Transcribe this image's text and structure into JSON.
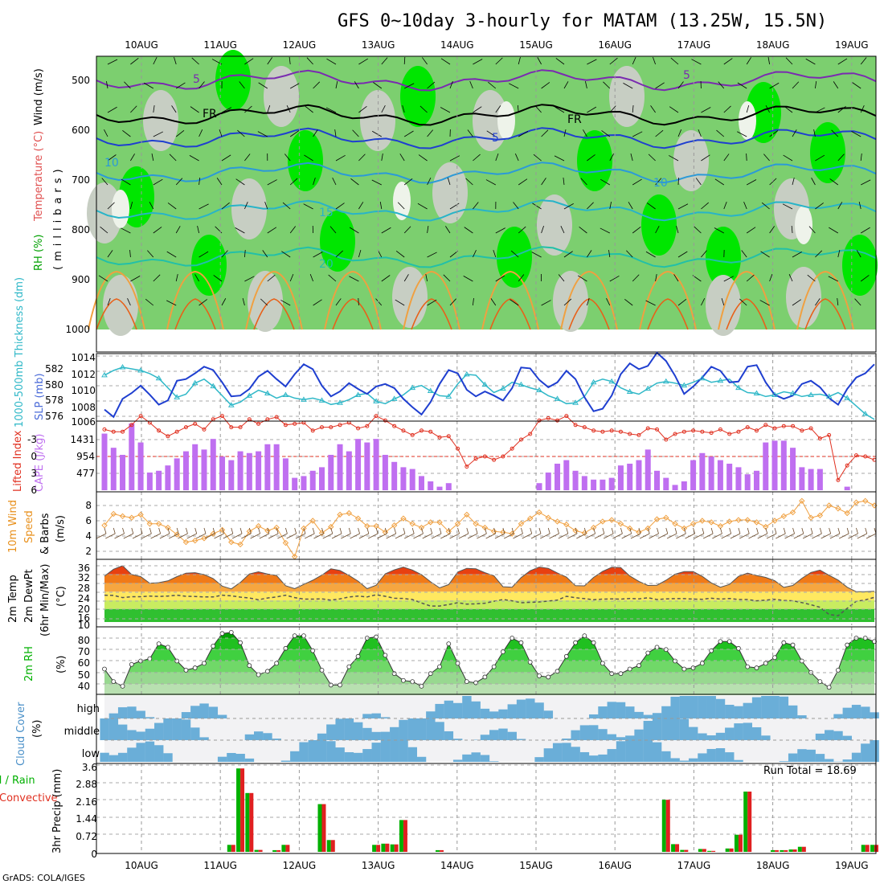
{
  "title": "GFS 0~10day 3-hourly for MATAM (13.25W, 15.5N)",
  "credit": "GrADS: COLA/IGES",
  "run_total_label": "Run Total = 18.69",
  "colors": {
    "green": "#00e600",
    "lgreen": "#7ccf6f",
    "grey": "#c7cec3",
    "pale": "#eef3ea",
    "blue": "#1f3fd0",
    "cyan": "#30b8c8",
    "orange": "#f0a040",
    "red": "#e03020",
    "purple": "#bf6ff0",
    "cloud": "#6aaed8",
    "rain": "#00b000",
    "conv": "#e02020"
  },
  "dates": [
    "10AUG",
    "11AUG",
    "12AUG",
    "13AUG",
    "14AUG",
    "15AUG",
    "16AUG",
    "17AUG",
    "18AUG",
    "19AUG"
  ],
  "side_labels": {
    "p1_rh": "RH (%)",
    "p1_temp": "Temperature (°C)",
    "p1_wind": "Wind (m/s)",
    "p1_mb": "(millibars)",
    "p2_thick": "1000-500mb Thickness (dm)",
    "p2_slp": "SLP (mb)",
    "p3_li": "Lifted Index",
    "p3_cape": "CAPE (J/kg)",
    "p4_a": "10m Wind",
    "p4_b": "Speed",
    "p4_c": "& Barbs",
    "p4_unit": "(m/s)",
    "p5_a": "2m Temp",
    "p5_b": "2m DewPt",
    "p5_c": "(6hr Min/Max)",
    "p5_unit": "(°C)",
    "p6_a": "2m RH",
    "p6_unit": "(%)",
    "p7_a": "Cloud Cover",
    "p7_unit": "(%)",
    "p8_a": "Total / Rain",
    "p8_b": "Convective",
    "p8_unit": "3hr Precip (mm)"
  },
  "chart_data": [
    {
      "type": "heatmap",
      "name": "vertical-profile",
      "ylabel": "(millibars)",
      "y_ticks": [
        500,
        600,
        700,
        800,
        900,
        1000
      ],
      "contour_labels": [
        "5",
        "FR",
        "5",
        "10",
        "15",
        "20",
        "5",
        "10",
        "5"
      ]
    },
    {
      "type": "line",
      "name": "slp-thickness",
      "left_ticks": [
        "582",
        "580",
        "578",
        "576"
      ],
      "right_ticks": [
        "1014",
        "1012",
        "1010",
        "1008",
        "1006"
      ],
      "slp": [
        1007.5,
        1006.6,
        1008.8,
        1009.5,
        1010.4,
        1009.3,
        1008.1,
        1008.6,
        1011.0,
        1011.2,
        1011.9,
        1012.7,
        1012.3,
        1010.8,
        1009.1,
        1009.2,
        1010.0,
        1011.5,
        1012.2,
        1011.2,
        1010.3,
        1011.8,
        1013.0,
        1012.4,
        1010.4,
        1009.1,
        1009.7,
        1010.7,
        1010.0,
        1009.4,
        1010.3,
        1010.6,
        1010.1,
        1008.8,
        1007.8,
        1006.9,
        1008.4,
        1010.6,
        1012.3,
        1011.9,
        1009.9,
        1009.1,
        1009.7,
        1009.2,
        1008.6,
        1010.1,
        1012.6,
        1012.5,
        1011.1,
        1010.2,
        1010.8,
        1012.2,
        1011.2,
        1009.0,
        1007.3,
        1007.6,
        1009.2,
        1011.8,
        1013.1,
        1012.4,
        1012.8,
        1014.4,
        1013.4,
        1011.6,
        1009.4,
        1010.3,
        1011.4,
        1012.7,
        1012.2,
        1010.8,
        1010.9,
        1012.7,
        1012.9,
        1010.8,
        1009.3,
        1008.8,
        1009.2,
        1010.6,
        1011.0,
        1010.2,
        1008.9,
        1008.1,
        1010.0,
        1011.4,
        1011.9,
        1013.0
      ],
      "thickness": [
        581.2,
        581.8,
        582.2,
        582.0,
        581.8,
        581.4,
        580.8,
        579.6,
        578.4,
        578.8,
        580.2,
        580.7,
        579.8,
        578.6,
        577.4,
        577.8,
        578.6,
        579.3,
        578.9,
        578.3,
        578.7,
        578.3,
        578.1,
        578.3,
        578.0,
        577.5,
        577.7,
        578.1,
        578.7,
        578.9,
        577.9,
        577.6,
        578.2,
        578.7,
        579.6,
        579.9,
        579.2,
        578.6,
        578.5,
        580.1,
        581.3,
        581.2,
        580.0,
        579.0,
        579.5,
        580.3,
        580.0,
        579.6,
        579.3,
        578.6,
        578.2,
        577.6,
        577.7,
        578.5,
        580.3,
        580.7,
        580.4,
        579.6,
        579.1,
        578.8,
        579.5,
        580.2,
        580.4,
        580.2,
        579.9,
        580.3,
        580.8,
        580.3,
        580.5,
        580.7,
        579.6,
        579.0,
        578.9,
        578.5,
        578.7,
        579.1,
        578.9,
        578.5,
        578.7,
        578.8,
        578.5,
        579.0,
        578.3,
        577.3,
        576.3,
        575.6
      ]
    },
    {
      "type": "bar",
      "name": "cape-li",
      "left_ticks": [
        "-3",
        "0",
        "3",
        "6"
      ],
      "right_ticks": [
        "1431",
        "954",
        "477"
      ],
      "cape": [
        1600,
        1200,
        1000,
        1900,
        1350,
        500,
        550,
        700,
        900,
        1100,
        1300,
        1150,
        1450,
        950,
        850,
        1100,
        1050,
        1100,
        1300,
        1300,
        900,
        350,
        400,
        550,
        650,
        1000,
        1300,
        1100,
        1450,
        1350,
        1450,
        1000,
        800,
        650,
        600,
        400,
        250,
        100,
        200,
        0,
        0,
        0,
        0,
        0,
        0,
        0,
        0,
        0,
        200,
        500,
        750,
        850,
        550,
        400,
        300,
        300,
        350,
        700,
        750,
        850,
        1150,
        550,
        350,
        150,
        250,
        850,
        1050,
        950,
        850,
        750,
        650,
        450,
        550,
        1350,
        1400,
        1400,
        1200,
        650,
        600,
        600,
        0,
        0,
        100,
        0,
        0,
        0
      ],
      "li": [
        -2.4,
        -2.2,
        -2.2,
        -2.8,
        -3.6,
        -3.0,
        -2.3,
        -1.8,
        -2.2,
        -2.6,
        -2.9,
        -2.4,
        -3.3,
        -3.6,
        -2.6,
        -2.6,
        -3.3,
        -2.9,
        -3.3,
        -3.5,
        -2.8,
        -2.9,
        -3.0,
        -2.3,
        -2.6,
        -2.6,
        -2.8,
        -3.0,
        -2.5,
        -2.7,
        -3.6,
        -3.2,
        -2.7,
        -2.3,
        -1.9,
        -2.3,
        -2.2,
        -1.7,
        -1.8,
        -0.7,
        0.9,
        0.2,
        0.0,
        0.3,
        0.0,
        -0.7,
        -1.5,
        -2.0,
        -3.2,
        -3.4,
        -3.2,
        -3.6,
        -2.8,
        -2.6,
        -2.3,
        -2.2,
        -2.3,
        -2.2,
        -2.0,
        -1.9,
        -2.5,
        -2.4,
        -1.5,
        -2.0,
        -2.2,
        -2.3,
        -2.2,
        -2.1,
        -2.4,
        -2.0,
        -2.2,
        -2.6,
        -2.3,
        -2.8,
        -2.5,
        -2.7,
        -2.7,
        -2.3,
        -2.5,
        -1.6,
        -1.9,
        2.1,
        0.8,
        -0.1,
        0.0,
        0.3
      ]
    },
    {
      "type": "line",
      "name": "wind-10m",
      "ylabel": "(m/s)",
      "y_ticks": [
        "8",
        "6",
        "4",
        "2"
      ],
      "speed": [
        5.4,
        6.9,
        6.6,
        6.4,
        6.8,
        5.6,
        5.6,
        5.1,
        4.2,
        3.2,
        3.4,
        3.7,
        4.3,
        4.8,
        3.2,
        2.9,
        4.6,
        5.3,
        4.7,
        5.1,
        3.1,
        1.3,
        5.0,
        6.0,
        4.4,
        5.2,
        6.8,
        7.0,
        6.3,
        5.3,
        5.3,
        4.5,
        5.4,
        6.3,
        5.6,
        5.1,
        5.8,
        5.8,
        4.6,
        5.6,
        6.8,
        5.6,
        5.1,
        4.6,
        4.5,
        4.3,
        5.6,
        6.3,
        7.1,
        6.4,
        5.9,
        5.5,
        4.7,
        4.4,
        5.1,
        5.9,
        6.1,
        5.6,
        5.0,
        4.5,
        5.0,
        6.2,
        6.4,
        5.6,
        5.0,
        5.6,
        6.0,
        5.8,
        5.3,
        5.9,
        6.1,
        6.1,
        5.8,
        5.2,
        6.0,
        6.6,
        7.1,
        8.6,
        6.4,
        6.7,
        8.0,
        7.6,
        7.0,
        8.4,
        8.6,
        8.0
      ]
    },
    {
      "type": "area",
      "name": "temp-2m",
      "ylabel": "(°C)",
      "y_ticks": [
        "36",
        "32",
        "28",
        "24",
        "20",
        "16",
        "10"
      ],
      "temp": [
        31.2,
        34.4,
        36.0,
        32.0,
        31.0,
        27.9,
        28.2,
        29.0,
        31.0,
        32.6,
        32.8,
        31.9,
        30.1,
        26.6,
        25.3,
        28.3,
        32.2,
        33.2,
        32.2,
        31.5,
        26.8,
        25.4,
        27.4,
        29.3,
        31.7,
        34.6,
        33.8,
        31.5,
        28.9,
        25.4,
        27.0,
        32.3,
        34.1,
        35.4,
        34.0,
        31.9,
        28.6,
        25.8,
        27.3,
        33.1,
        34.8,
        34.6,
        32.8,
        31.4,
        26.3,
        26.1,
        30.5,
        33.7,
        35.4,
        34.8,
        32.7,
        30.8,
        26.8,
        26.7,
        30.6,
        33.4,
        35.3,
        35.2,
        31.3,
        28.8,
        26.9,
        27.0,
        29.3,
        32.1,
        33.3,
        33.3,
        31.1,
        28.1,
        26.1,
        27.4,
        31.1,
        32.6,
        31.5,
        30.6,
        29.1,
        26.0,
        26.9,
        30.2,
        32.9,
        34.0,
        31.6,
        29.4,
        26.1,
        24.0,
        24.0,
        24.2
      ],
      "dewpt": [
        22.4,
        22.3,
        21.3,
        21.7,
        21.7,
        22.0,
        21.8,
        22.0,
        22.4,
        21.9,
        21.8,
        21.6,
        21.6,
        22.4,
        22.1,
        21.5,
        21.1,
        20.3,
        21.1,
        21.6,
        22.4,
        21.3,
        20.6,
        20.6,
        20.7,
        20.1,
        20.7,
        21.6,
        22.0,
        21.6,
        22.6,
        21.9,
        21.0,
        20.9,
        20.4,
        18.8,
        17.4,
        17.4,
        18.1,
        18.9,
        18.3,
        18.4,
        18.7,
        19.6,
        20.4,
        19.8,
        18.9,
        19.1,
        19.3,
        19.7,
        20.1,
        21.9,
        21.2,
        20.8,
        20.3,
        20.6,
        20.7,
        20.6,
        20.9,
        20.7,
        21.2,
        20.4,
        20.7,
        20.8,
        20.8,
        20.6,
        20.5,
        21.0,
        20.6,
        20.9,
        20.4,
        20.4,
        19.8,
        20.1,
        20.5,
        20.0,
        19.8,
        19.0,
        18.0,
        16.8,
        13.5,
        12.9,
        16.3,
        19.6,
        20.2,
        21.4
      ]
    },
    {
      "type": "area",
      "name": "rh-2m",
      "ylabel": "(%)",
      "y_ticks": [
        "80",
        "70",
        "60",
        "50",
        "40"
      ],
      "rh": [
        53.0,
        42.0,
        38.0,
        57.0,
        60.0,
        62.0,
        75.0,
        72.0,
        60.0,
        52.0,
        54.0,
        58.0,
        73.0,
        84.0,
        85.0,
        76.0,
        56.0,
        48.0,
        51.0,
        58.0,
        71.0,
        82.0,
        82.0,
        69.0,
        52.0,
        39.0,
        39.0,
        55.0,
        64.0,
        80.0,
        81.0,
        65.0,
        49.0,
        43.0,
        42.0,
        38.0,
        49.0,
        55.0,
        75.0,
        58.0,
        42.0,
        41.0,
        46.0,
        55.0,
        68.0,
        80.0,
        76.0,
        59.0,
        47.0,
        46.0,
        51.0,
        64.0,
        76.0,
        82.0,
        76.0,
        58.0,
        49.0,
        49.0,
        53.0,
        56.0,
        67.0,
        72.0,
        70.0,
        60.0,
        53.0,
        54.0,
        58.0,
        69.0,
        77.0,
        77.0,
        71.0,
        55.0,
        54.0,
        58.0,
        63.0,
        76.0,
        74.0,
        60.0,
        50.0,
        42.0,
        37.0,
        52.0,
        74.0,
        80.0,
        80.0,
        77.0
      ],
      "levels": [
        "high",
        "middle",
        "low"
      ]
    },
    {
      "type": "bar",
      "name": "precip-3hr",
      "ylabel": "3hr Precip (mm)",
      "y_ticks": [
        "3.6",
        "2.88",
        "2.16",
        "1.44",
        "0.72",
        "0"
      ],
      "total": [
        0,
        0,
        0,
        0,
        0,
        0,
        0,
        0,
        0,
        0,
        0,
        0,
        0,
        0,
        0.29,
        3.46,
        2.44,
        0.08,
        0,
        0.07,
        0.29,
        0,
        0,
        0,
        1.98,
        0.49,
        0,
        0,
        0,
        0,
        0.29,
        0.34,
        0.31,
        1.32,
        0,
        0,
        0,
        0.07,
        0,
        0,
        0,
        0,
        0,
        0,
        0,
        0,
        0,
        0,
        0,
        0,
        0,
        0,
        0,
        0,
        0,
        0,
        0,
        0,
        0,
        0,
        0,
        0,
        2.16,
        0.32,
        0.08,
        0,
        0.12,
        0.04,
        0,
        0.14,
        0.71,
        2.5,
        0,
        0,
        0.07,
        0.07,
        0.1,
        0.21,
        0,
        0,
        0,
        0,
        0,
        0,
        0.29,
        0.29
      ],
      "convective": [
        0,
        0,
        0,
        0,
        0,
        0,
        0,
        0,
        0,
        0,
        0,
        0,
        0,
        0,
        0.29,
        3.46,
        2.44,
        0.08,
        0,
        0.07,
        0.29,
        0,
        0,
        0,
        1.98,
        0.49,
        0,
        0,
        0,
        0,
        0.29,
        0.34,
        0.31,
        1.32,
        0,
        0,
        0,
        0.07,
        0,
        0,
        0,
        0,
        0,
        0,
        0,
        0,
        0,
        0,
        0,
        0,
        0,
        0,
        0,
        0,
        0,
        0,
        0,
        0,
        0,
        0,
        0,
        0,
        2.16,
        0.32,
        0.08,
        0,
        0.12,
        0.04,
        0,
        0.14,
        0.71,
        2.5,
        0,
        0,
        0.07,
        0.07,
        0.1,
        0.21,
        0,
        0,
        0,
        0,
        0,
        0,
        0.29,
        0.29
      ]
    }
  ]
}
